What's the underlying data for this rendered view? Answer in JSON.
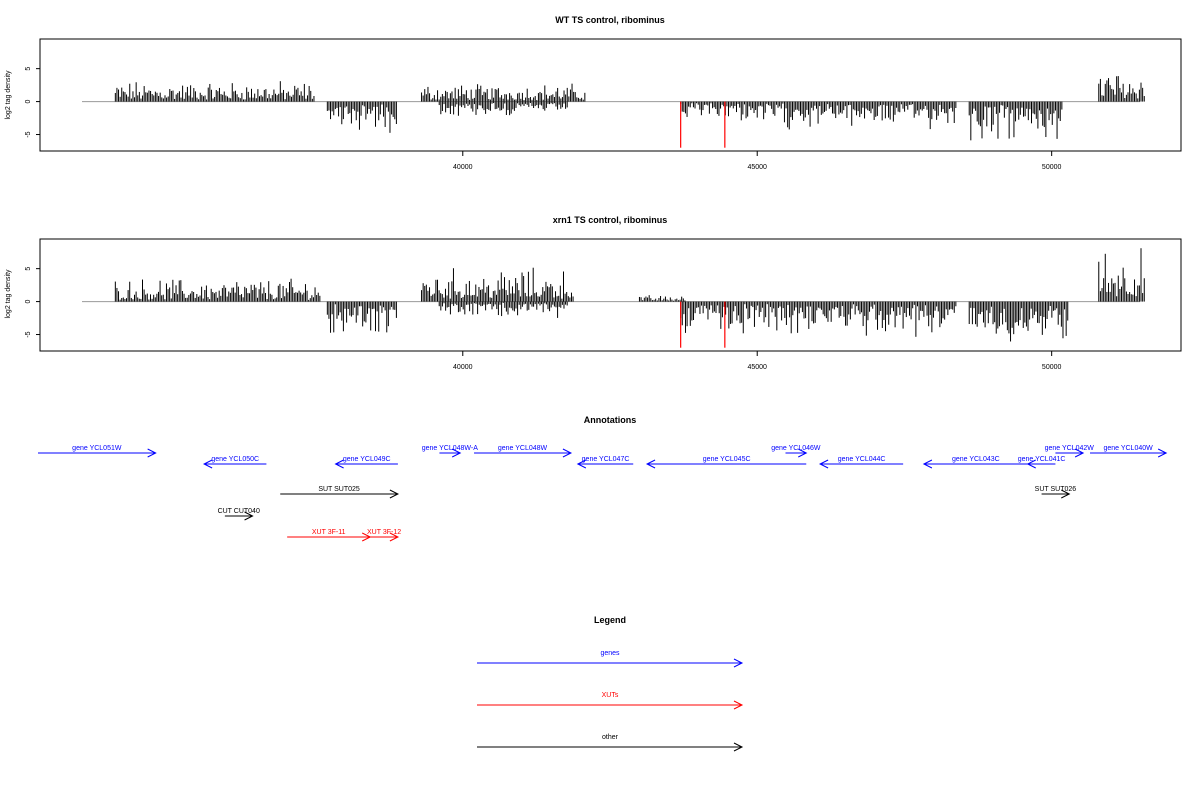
{
  "chart_data": [
    {
      "type": "bar",
      "title": "WT TS control, ribominus",
      "xlabel": "",
      "ylabel": "log2 tag density",
      "xlim": [
        33500,
        51500
      ],
      "ylim": [
        -7.5,
        9.5
      ],
      "xticks": [
        40000,
        45000,
        50000
      ],
      "xtick_labels": [
        "40000",
        "45000",
        "50000"
      ],
      "yticks": [
        -5,
        0,
        5
      ],
      "ytick_labels": [
        "-5",
        "0",
        "5"
      ],
      "series": [
        {
          "strand": "plus",
          "color": "#000000",
          "segments": [
            [
              34100,
              37500,
              2.5
            ],
            [
              39300,
              42100,
              2.2
            ],
            [
              50800,
              51600,
              4.0
            ]
          ]
        },
        {
          "strand": "minus",
          "color": "#000000",
          "segments": [
            [
              37700,
              38900,
              -3.5
            ],
            [
              39600,
              41800,
              -1.8
            ],
            [
              43700,
              45000,
              -2.5
            ],
            [
              45000,
              48400,
              -3.2
            ],
            [
              48600,
              50200,
              -5.0
            ]
          ]
        }
      ],
      "highlight_bars": [
        {
          "x": 43700,
          "y": -7,
          "color": "#ff0000"
        },
        {
          "x": 44450,
          "y": -7,
          "color": "#ff0000"
        }
      ]
    },
    {
      "type": "bar",
      "title": "xrn1 TS control, ribominus",
      "xlabel": "",
      "ylabel": "log2 tag density",
      "xlim": [
        33500,
        51500
      ],
      "ylim": [
        -7.5,
        9.5
      ],
      "xticks": [
        40000,
        45000,
        50000
      ],
      "xtick_labels": [
        "40000",
        "45000",
        "50000"
      ],
      "yticks": [
        -5,
        0,
        5
      ],
      "ytick_labels": [
        "-5",
        "0",
        "5"
      ],
      "series": [
        {
          "strand": "plus",
          "color": "#000000",
          "segments": [
            [
              34100,
              37600,
              2.8
            ],
            [
              39300,
              41900,
              4.0
            ],
            [
              43000,
              43800,
              0.8
            ],
            [
              50800,
              51600,
              6.5
            ]
          ]
        },
        {
          "strand": "minus",
          "color": "#000000",
          "segments": [
            [
              37700,
              38900,
              -4.0
            ],
            [
              39600,
              41800,
              -2.0
            ],
            [
              43700,
              44600,
              -4.0
            ],
            [
              44600,
              48400,
              -4.0
            ],
            [
              48600,
              50300,
              -5.0
            ]
          ]
        }
      ],
      "highlight_bars": [
        {
          "x": 43700,
          "y": -7,
          "color": "#ff0000"
        },
        {
          "x": 44450,
          "y": -7,
          "color": "#ff0000"
        }
      ]
    }
  ],
  "annotations": {
    "title": "Annotations",
    "features": [
      {
        "label": "gene YCL051W",
        "start": 33500,
        "end": 35200,
        "color": "#0000ff",
        "dir": "right",
        "row": 0
      },
      {
        "label": "gene YCL050C",
        "start": 35900,
        "end": 36800,
        "color": "#0000ff",
        "dir": "left",
        "row": 1
      },
      {
        "label": "gene YCL049C",
        "start": 37800,
        "end": 38700,
        "color": "#0000ff",
        "dir": "left",
        "row": 1
      },
      {
        "label": "gene YCL048W-A",
        "start": 39300,
        "end": 39600,
        "color": "#0000ff",
        "dir": "right",
        "row": 0
      },
      {
        "label": "gene YCL048W",
        "start": 39800,
        "end": 41200,
        "color": "#0000ff",
        "dir": "right",
        "row": 0
      },
      {
        "label": "gene YCL047C",
        "start": 41300,
        "end": 42100,
        "color": "#0000ff",
        "dir": "left",
        "row": 1
      },
      {
        "label": "gene YCL045C",
        "start": 42300,
        "end": 44600,
        "color": "#0000ff",
        "dir": "left",
        "row": 1
      },
      {
        "label": "gene YCL046W",
        "start": 44300,
        "end": 44600,
        "color": "#0000ff",
        "dir": "right",
        "row": 0
      },
      {
        "label": "gene YCL044C",
        "start": 44800,
        "end": 46000,
        "color": "#0000ff",
        "dir": "left",
        "row": 1
      },
      {
        "label": "gene YCL043C",
        "start": 46300,
        "end": 47800,
        "color": "#0000ff",
        "dir": "left",
        "row": 1
      },
      {
        "label": "gene YCL041C",
        "start": 47800,
        "end": 48200,
        "color": "#0000ff",
        "dir": "left",
        "row": 1
      },
      {
        "label": "gene YCL042W",
        "start": 48200,
        "end": 48600,
        "color": "#0000ff",
        "dir": "right",
        "row": 0
      },
      {
        "label": "gene YCL040W",
        "start": 48700,
        "end": 49800,
        "color": "#0000ff",
        "dir": "right",
        "row": 0
      },
      {
        "label": "SUT SUT025",
        "start": 37000,
        "end": 38700,
        "color": "#000000",
        "dir": "right",
        "row": 2
      },
      {
        "label": "SUT SUT026",
        "start": 48000,
        "end": 48400,
        "color": "#000000",
        "dir": "right",
        "row": 2
      },
      {
        "label": "CUT CUT040",
        "start": 36200,
        "end": 36600,
        "color": "#000000",
        "dir": "right",
        "row": 3
      },
      {
        "label": "XUT 3F-11",
        "start": 37100,
        "end": 38300,
        "color": "#ff0000",
        "dir": "right",
        "row": 4
      },
      {
        "label": "XUT 3F-12",
        "start": 38300,
        "end": 38700,
        "color": "#ff0000",
        "dir": "right",
        "row": 4
      }
    ]
  },
  "legend": {
    "title": "Legend",
    "items": [
      {
        "label": "genes",
        "color": "#0000ff"
      },
      {
        "label": "XUTs",
        "color": "#ff0000"
      },
      {
        "label": "other",
        "color": "#000000"
      }
    ]
  }
}
